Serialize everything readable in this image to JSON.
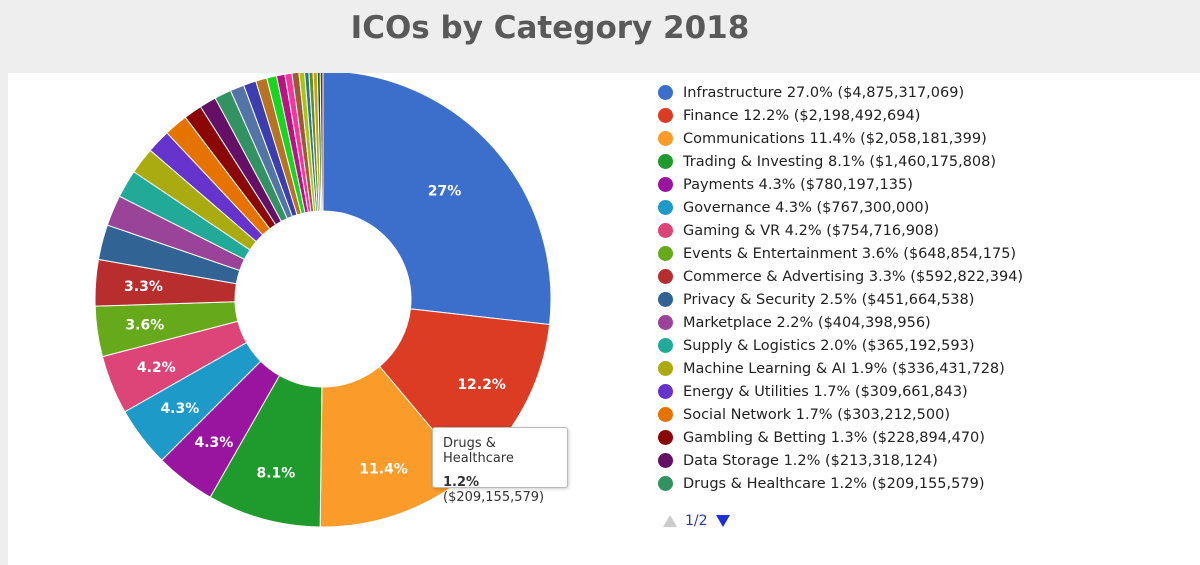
{
  "chart_data": {
    "type": "pie",
    "title": "ICOs by Category 2018",
    "donut": true,
    "series": [
      {
        "name": "Infrastructure",
        "percent": 27.0,
        "pct_text": "27.0%",
        "value": 4875317069,
        "value_text": "$4,875,317,069",
        "slice_label": "27%",
        "color": "#3b6fcb"
      },
      {
        "name": "Finance",
        "percent": 12.2,
        "pct_text": "12.2%",
        "value": 2198492694,
        "value_text": "$2,198,492,694",
        "slice_label": "12.2%",
        "color": "#db3c23"
      },
      {
        "name": "Communications",
        "percent": 11.4,
        "pct_text": "11.4%",
        "value": 2058181399,
        "value_text": "$2,058,181,399",
        "slice_label": "11.4%",
        "color": "#fb9b2a"
      },
      {
        "name": "Trading & Investing",
        "percent": 8.1,
        "pct_text": "8.1%",
        "value": 1460175808,
        "value_text": "$1,460,175,808",
        "slice_label": "8.1%",
        "color": "#1f9a2c"
      },
      {
        "name": "Payments",
        "percent": 4.3,
        "pct_text": "4.3%",
        "value": 780197135,
        "value_text": "$780,197,135",
        "slice_label": "4.3%",
        "color": "#9a159f"
      },
      {
        "name": "Governance",
        "percent": 4.3,
        "pct_text": "4.3%",
        "value": 767300000,
        "value_text": "$767,300,000",
        "slice_label": "4.3%",
        "color": "#1e9ac8"
      },
      {
        "name": "Gaming & VR",
        "percent": 4.2,
        "pct_text": "4.2%",
        "value": 754716908,
        "value_text": "$754,716,908",
        "slice_label": "4.2%",
        "color": "#dd4477"
      },
      {
        "name": "Events & Entertainment",
        "percent": 3.6,
        "pct_text": "3.6%",
        "value": 648854175,
        "value_text": "$648,854,175",
        "slice_label": "3.6%",
        "color": "#66aa1c"
      },
      {
        "name": "Commerce & Advertising",
        "percent": 3.3,
        "pct_text": "3.3%",
        "value": 592822394,
        "value_text": "$592,822,394",
        "slice_label": "3.3%",
        "color": "#b82e2e"
      },
      {
        "name": "Privacy & Security",
        "percent": 2.5,
        "pct_text": "2.5%",
        "value": 451664538,
        "value_text": "$451,664,538",
        "slice_label": "",
        "color": "#316395"
      },
      {
        "name": "Marketplace",
        "percent": 2.2,
        "pct_text": "2.2%",
        "value": 404398956,
        "value_text": "$404,398,956",
        "slice_label": "",
        "color": "#994499"
      },
      {
        "name": "Supply & Logistics",
        "percent": 2.0,
        "pct_text": "2.0%",
        "value": 365192593,
        "value_text": "$365,192,593",
        "slice_label": "",
        "color": "#22aa99"
      },
      {
        "name": "Machine Learning & AI",
        "percent": 1.9,
        "pct_text": "1.9%",
        "value": 336431728,
        "value_text": "$336,431,728",
        "slice_label": "",
        "color": "#aaaa11"
      },
      {
        "name": "Energy & Utilities",
        "percent": 1.7,
        "pct_text": "1.7%",
        "value": 309661843,
        "value_text": "$309,661,843",
        "slice_label": "",
        "color": "#6633cc"
      },
      {
        "name": "Social Network",
        "percent": 1.7,
        "pct_text": "1.7%",
        "value": 303212500,
        "value_text": "$303,212,500",
        "slice_label": "",
        "color": "#e67300"
      },
      {
        "name": "Gambling & Betting",
        "percent": 1.3,
        "pct_text": "1.3%",
        "value": 228894470,
        "value_text": "$228,894,470",
        "slice_label": "",
        "color": "#8b0707"
      },
      {
        "name": "Data Storage",
        "percent": 1.2,
        "pct_text": "1.2%",
        "value": 213318124,
        "value_text": "$213,318,124",
        "slice_label": "",
        "color": "#651067"
      },
      {
        "name": "Drugs & Healthcare",
        "percent": 1.2,
        "pct_text": "1.2%",
        "value": 209155579,
        "value_text": "$209,155,579",
        "slice_label": "",
        "color": "#329262"
      }
    ],
    "other_slices": [
      {
        "color": "#5574a6",
        "percent": 1.0
      },
      {
        "color": "#3b3eac",
        "percent": 0.9
      },
      {
        "color": "#b77322",
        "percent": 0.8
      },
      {
        "color": "#16d620",
        "percent": 0.7
      },
      {
        "color": "#b91383",
        "percent": 0.6
      },
      {
        "color": "#f4359e",
        "percent": 0.5
      },
      {
        "color": "#9c5935",
        "percent": 0.5
      },
      {
        "color": "#a9c413",
        "percent": 0.4
      },
      {
        "color": "#2a778d",
        "percent": 0.3
      },
      {
        "color": "#668d1c",
        "percent": 0.3
      },
      {
        "color": "#bea413",
        "percent": 0.3
      },
      {
        "color": "#0c5922",
        "percent": 0.2
      },
      {
        "color": "#743411",
        "percent": 0.2
      }
    ],
    "legend_position": "right",
    "tooltip": {
      "name": "Drugs & Healthcare",
      "percent_text": "1.2%",
      "value_text": "($209,155,579)"
    },
    "pagination": {
      "text": "1/2"
    }
  }
}
